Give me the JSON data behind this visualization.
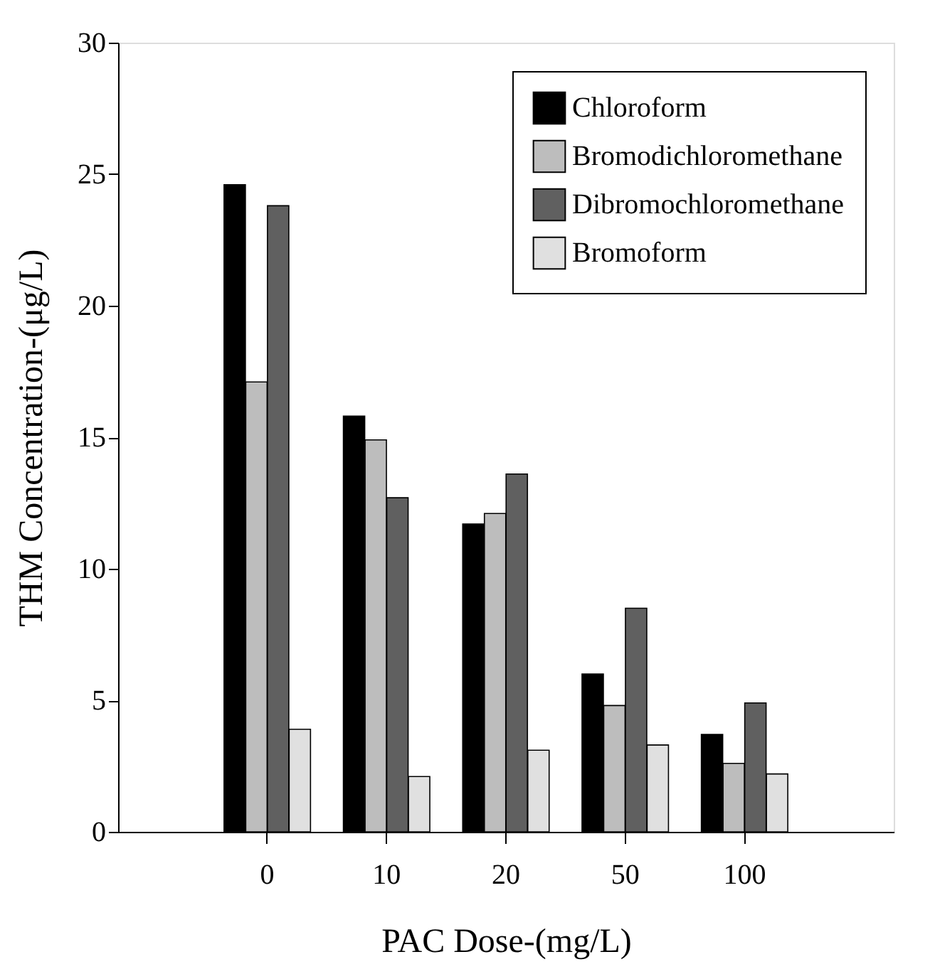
{
  "chart_data": {
    "type": "bar",
    "xlabel": "PAC Dose-(mg/L)",
    "ylabel": "THM Concentration-(μg/L)",
    "categories": [
      "0",
      "10",
      "20",
      "50",
      "100"
    ],
    "series": [
      {
        "name": "Chloroform",
        "color": "#000000",
        "values": [
          24.6,
          15.8,
          11.7,
          6.0,
          3.7
        ]
      },
      {
        "name": "Bromodichloromethane",
        "color": "#bdbdbd",
        "values": [
          17.1,
          14.9,
          12.1,
          4.8,
          2.6
        ]
      },
      {
        "name": "Dibromochloromethane",
        "color": "#606060",
        "values": [
          23.8,
          12.7,
          13.6,
          8.5,
          4.9
        ]
      },
      {
        "name": "Bromoform",
        "color": "#e0e0e0",
        "values": [
          3.9,
          2.1,
          3.1,
          3.3,
          2.2
        ]
      }
    ],
    "ylim": [
      0,
      30
    ],
    "yticks": [
      0,
      5,
      10,
      15,
      20,
      25,
      30
    ],
    "grid": false,
    "legend": "top right"
  }
}
